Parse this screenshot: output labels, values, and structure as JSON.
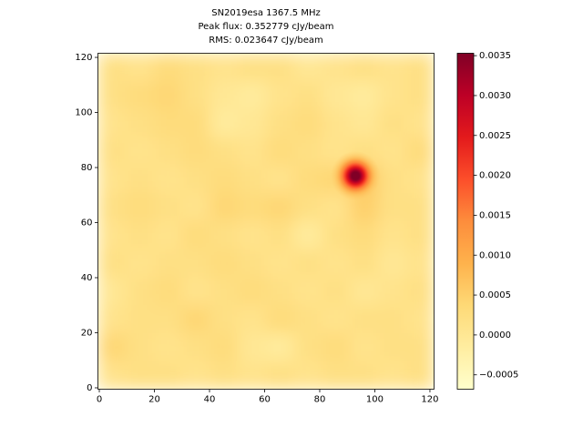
{
  "chart_data": {
    "type": "heatmap",
    "title": [
      "SN2019esa 1367.5 MHz",
      "Peak flux: 0.352779 cJy/beam",
      "RMS: 0.023647 cJy/beam"
    ],
    "xlim": [
      -0.5,
      121.5
    ],
    "ylim": [
      -0.5,
      121.5
    ],
    "xticks": [
      0,
      20,
      40,
      60,
      80,
      100,
      120
    ],
    "yticks": [
      0,
      20,
      40,
      60,
      80,
      100,
      120
    ],
    "colormap": [
      "#ffffcc",
      "#ffeda0",
      "#fed976",
      "#feb24c",
      "#fd8d3c",
      "#fc4e2a",
      "#e31a1c",
      "#bd0026",
      "#800026"
    ],
    "clim": [
      -0.00068,
      0.00353
    ],
    "cticks": [
      {
        "value": -0.0005,
        "label": "−0.0005"
      },
      {
        "value": 0,
        "label": "0.0000"
      },
      {
        "value": 0.0005,
        "label": "0.0005"
      },
      {
        "value": 0.001,
        "label": "0.0010"
      },
      {
        "value": 0.0015,
        "label": "0.0015"
      },
      {
        "value": 0.002,
        "label": "0.0020"
      },
      {
        "value": 0.0025,
        "label": "0.0025"
      },
      {
        "value": 0.003,
        "label": "0.0030"
      },
      {
        "value": 0.0035,
        "label": "0.0035"
      }
    ],
    "z": [
      [
        0.0002,
        0.0001,
        0.0003,
        0.0002,
        0.0001,
        0.0002,
        0.0002,
        0,
        0.0001,
        0.0002,
        0.0001,
        0.0002
      ],
      [
        0.0002,
        0.0003,
        0.0004,
        0.0002,
        0,
        -0.0001,
        0.0001,
        0.0002,
        0,
        -0.0001,
        0.0001,
        0.0002
      ],
      [
        0.0001,
        0.0002,
        0.0003,
        0.0003,
        -0.0001,
        0,
        0.0002,
        0.0003,
        0.0001,
        0,
        0.0002,
        0.0001
      ],
      [
        0.0002,
        0.0001,
        0.0002,
        0.0003,
        0.0002,
        0.0001,
        0.0003,
        0.0002,
        0.0001,
        0.0002,
        0.0001,
        0.0003
      ],
      [
        0.0001,
        0.0002,
        0.0001,
        0.0002,
        0.0003,
        0.0002,
        0.0001,
        0.0003,
        0.0004,
        0.0006,
        0.0002,
        0.0001
      ],
      [
        0.0002,
        0.0003,
        0.0002,
        0.0001,
        0.0004,
        0.0003,
        0.0004,
        0.0002,
        0.0001,
        0.0005,
        0.0002,
        0.0002
      ],
      [
        0.0001,
        0.0002,
        0.0001,
        0.0003,
        0.0002,
        0.0001,
        0.0002,
        -0.0001,
        0.0002,
        0.0003,
        0.0001,
        0.0002
      ],
      [
        0.0002,
        0.0001,
        0.0002,
        0.0002,
        0.0003,
        0.0002,
        0.0001,
        0.0002,
        0.0001,
        0.0002,
        0,
        0.0001
      ],
      [
        0,
        0.0002,
        0.0003,
        0.0001,
        0.0002,
        0.0003,
        0.0002,
        0.0001,
        0.0002,
        0,
        0.0001,
        0.0002
      ],
      [
        0.0001,
        0.0002,
        0.0002,
        0.0004,
        0.0002,
        0.0001,
        0.0003,
        0.0002,
        0.0001,
        0.0002,
        0.0002,
        0.0001
      ],
      [
        0.0004,
        0.0002,
        0.0001,
        0.0002,
        0.0003,
        0,
        -0.0001,
        0.0002,
        0.0003,
        0.0001,
        0.0002,
        0.0002
      ],
      [
        0.0001,
        0.0002,
        0.0002,
        0.0001,
        0.0002,
        0.0001,
        0.0002,
        0.0001,
        0.0002,
        0.0002,
        0.0001,
        0.0002
      ]
    ],
    "source": {
      "x": 93,
      "y": 77,
      "peak": 0.0033,
      "sigma": 3
    }
  }
}
